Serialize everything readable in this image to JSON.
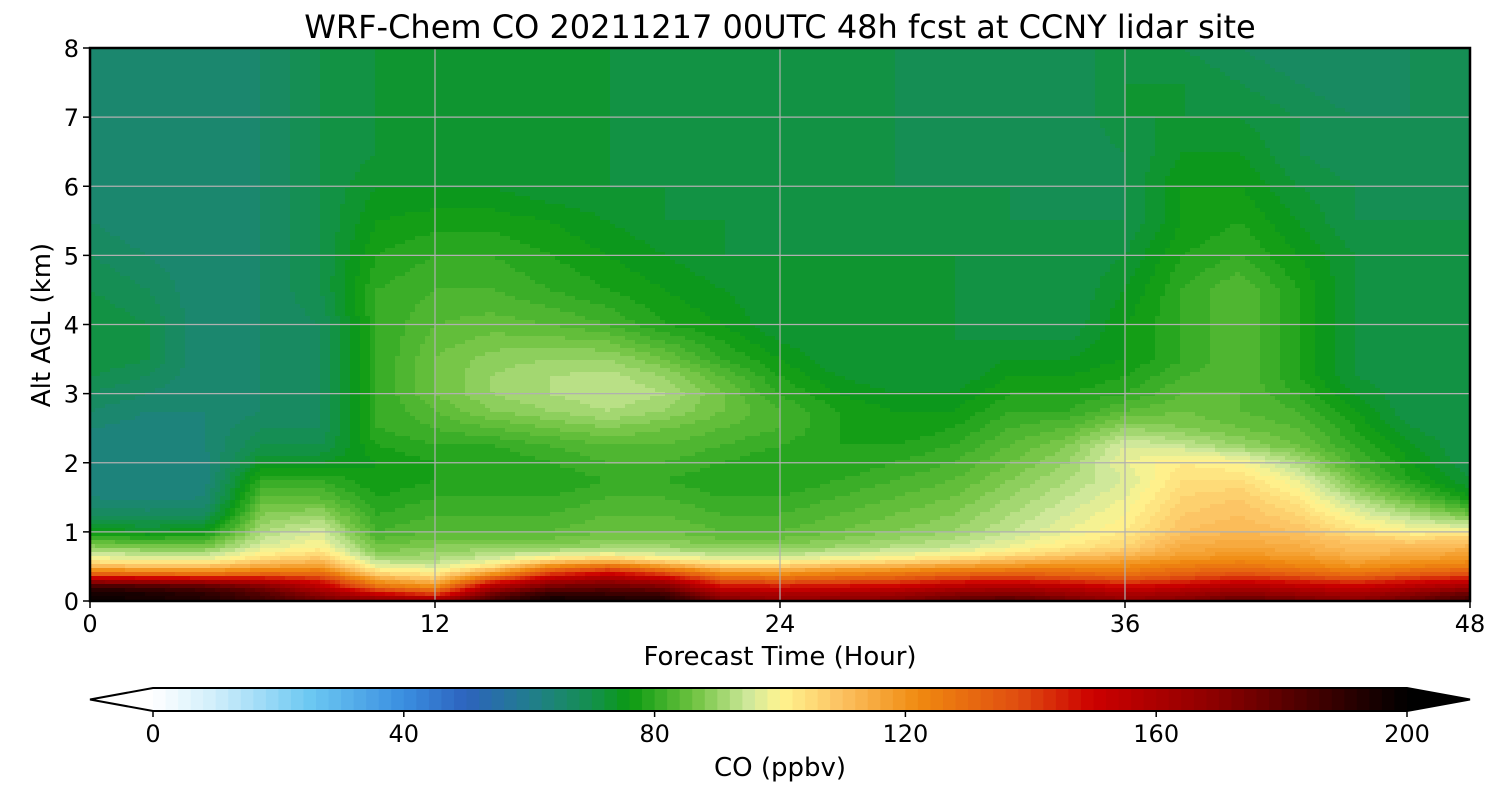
{
  "chart_data": {
    "type": "heatmap",
    "title": "WRF-Chem CO  20211217 00UTC 48h fcst at CCNY lidar site",
    "xlabel": "Forecast Time (Hour)",
    "ylabel": "Alt AGL (km)",
    "xlim": [
      0,
      48
    ],
    "ylim": [
      0,
      8
    ],
    "xticks": [
      "0",
      "12",
      "24",
      "36",
      "48"
    ],
    "yticks": [
      "0",
      "1",
      "2",
      "3",
      "4",
      "5",
      "6",
      "7",
      "8"
    ],
    "grid": true,
    "x_hours": [
      0,
      2,
      4,
      6,
      8,
      10,
      12,
      14,
      16,
      18,
      20,
      22,
      24,
      26,
      28,
      30,
      32,
      34,
      36,
      38,
      40,
      42,
      44,
      46,
      48
    ],
    "y_km": [
      0,
      0.1,
      0.2,
      0.3,
      0.4,
      0.5,
      0.6,
      0.7,
      0.8,
      0.9,
      1.0,
      1.25,
      1.5,
      1.75,
      2.0,
      2.25,
      2.5,
      2.75,
      3.0,
      3.25,
      3.5,
      3.75,
      4.0,
      4.5,
      5.0,
      5.5,
      6.0,
      6.5,
      7.0,
      7.5,
      8.0
    ],
    "co_ppbv_rows": [
      [
        198,
        196,
        193,
        186,
        176,
        172,
        168,
        186,
        198,
        196,
        194,
        174,
        168,
        170,
        172,
        180,
        184,
        176,
        168,
        172,
        180,
        176,
        170,
        178,
        186
      ],
      [
        196,
        194,
        190,
        182,
        168,
        152,
        140,
        176,
        190,
        188,
        186,
        164,
        160,
        162,
        164,
        170,
        172,
        166,
        160,
        164,
        170,
        166,
        162,
        170,
        178
      ],
      [
        188,
        186,
        182,
        174,
        156,
        130,
        122,
        160,
        176,
        178,
        174,
        150,
        148,
        150,
        152,
        158,
        160,
        156,
        150,
        154,
        160,
        156,
        152,
        158,
        164
      ],
      [
        162,
        160,
        158,
        154,
        146,
        118,
        110,
        140,
        160,
        166,
        158,
        136,
        134,
        136,
        138,
        144,
        146,
        142,
        138,
        142,
        148,
        144,
        140,
        146,
        150
      ],
      [
        130,
        128,
        126,
        130,
        130,
        106,
        102,
        118,
        140,
        150,
        138,
        122,
        120,
        124,
        126,
        130,
        132,
        130,
        128,
        132,
        136,
        132,
        128,
        132,
        136
      ],
      [
        112,
        110,
        110,
        116,
        118,
        98,
        96,
        104,
        122,
        130,
        118,
        108,
        108,
        112,
        114,
        118,
        120,
        122,
        122,
        126,
        128,
        124,
        120,
        124,
        126
      ],
      [
        100,
        98,
        98,
        106,
        110,
        92,
        92,
        96,
        104,
        108,
        102,
        98,
        98,
        100,
        102,
        106,
        110,
        114,
        116,
        120,
        122,
        120,
        116,
        118,
        120
      ],
      [
        94,
        92,
        92,
        100,
        104,
        88,
        90,
        92,
        94,
        96,
        94,
        92,
        92,
        94,
        96,
        98,
        102,
        106,
        110,
        116,
        118,
        116,
        112,
        114,
        116
      ],
      [
        88,
        86,
        86,
        96,
        100,
        86,
        88,
        88,
        88,
        90,
        90,
        88,
        88,
        90,
        92,
        94,
        98,
        102,
        106,
        114,
        116,
        114,
        110,
        110,
        112
      ],
      [
        82,
        80,
        82,
        94,
        98,
        84,
        86,
        86,
        86,
        88,
        88,
        86,
        86,
        88,
        90,
        92,
        96,
        100,
        104,
        112,
        114,
        112,
        108,
        106,
        108
      ],
      [
        76,
        74,
        76,
        92,
        96,
        82,
        84,
        84,
        84,
        86,
        86,
        84,
        84,
        86,
        88,
        90,
        94,
        98,
        102,
        110,
        112,
        110,
        104,
        100,
        100
      ],
      [
        68,
        67,
        68,
        88,
        90,
        80,
        82,
        82,
        82,
        84,
        84,
        82,
        82,
        84,
        86,
        88,
        92,
        96,
        100,
        108,
        110,
        106,
        98,
        92,
        86
      ],
      [
        64,
        63,
        64,
        84,
        84,
        78,
        80,
        80,
        80,
        82,
        82,
        80,
        80,
        82,
        84,
        86,
        90,
        94,
        98,
        106,
        108,
        102,
        92,
        84,
        76
      ],
      [
        62,
        62,
        63,
        80,
        80,
        76,
        78,
        78,
        78,
        80,
        80,
        78,
        78,
        80,
        82,
        84,
        88,
        92,
        96,
        104,
        104,
        98,
        86,
        78,
        72
      ],
      [
        62,
        62,
        63,
        74,
        74,
        76,
        78,
        78,
        80,
        82,
        82,
        80,
        78,
        78,
        80,
        82,
        86,
        90,
        98,
        102,
        100,
        92,
        82,
        76,
        70
      ],
      [
        63,
        63,
        64,
        70,
        70,
        78,
        80,
        80,
        82,
        84,
        84,
        82,
        80,
        78,
        78,
        80,
        84,
        88,
        96,
        94,
        90,
        86,
        80,
        74,
        70
      ],
      [
        64,
        63,
        64,
        68,
        68,
        80,
        82,
        84,
        86,
        88,
        86,
        84,
        82,
        78,
        76,
        78,
        82,
        84,
        90,
        88,
        86,
        84,
        78,
        72,
        70
      ],
      [
        66,
        64,
        64,
        66,
        68,
        80,
        84,
        88,
        90,
        92,
        90,
        86,
        82,
        78,
        76,
        76,
        80,
        80,
        84,
        86,
        84,
        82,
        76,
        70,
        70
      ],
      [
        68,
        66,
        64,
        66,
        68,
        80,
        86,
        90,
        92,
        94,
        92,
        86,
        80,
        76,
        74,
        74,
        78,
        78,
        80,
        84,
        84,
        80,
        74,
        70,
        70
      ],
      [
        70,
        68,
        64,
        66,
        68,
        80,
        86,
        90,
        92,
        93,
        90,
        84,
        78,
        74,
        72,
        72,
        76,
        76,
        78,
        82,
        84,
        78,
        72,
        70,
        70
      ],
      [
        72,
        70,
        64,
        66,
        68,
        80,
        86,
        89,
        90,
        90,
        86,
        80,
        76,
        72,
        72,
        72,
        74,
        74,
        76,
        80,
        84,
        78,
        72,
        70,
        70
      ],
      [
        72,
        70,
        64,
        66,
        68,
        80,
        85,
        87,
        87,
        86,
        82,
        78,
        74,
        72,
        72,
        72,
        72,
        72,
        76,
        80,
        84,
        78,
        72,
        70,
        70
      ],
      [
        72,
        70,
        64,
        66,
        68,
        80,
        84,
        85,
        84,
        82,
        78,
        76,
        72,
        72,
        72,
        72,
        70,
        70,
        76,
        80,
        84,
        78,
        72,
        70,
        70
      ],
      [
        70,
        68,
        64,
        66,
        70,
        80,
        82,
        82,
        80,
        78,
        76,
        74,
        72,
        72,
        72,
        72,
        70,
        70,
        74,
        80,
        84,
        78,
        72,
        70,
        70
      ],
      [
        68,
        66,
        64,
        66,
        70,
        78,
        80,
        80,
        78,
        76,
        74,
        72,
        72,
        72,
        72,
        72,
        70,
        70,
        72,
        78,
        80,
        76,
        72,
        70,
        70
      ],
      [
        66,
        64,
        64,
        66,
        70,
        76,
        77,
        77,
        76,
        74,
        72,
        72,
        70,
        70,
        70,
        70,
        70,
        70,
        70,
        76,
        78,
        74,
        70,
        70,
        70
      ],
      [
        66,
        64,
        64,
        66,
        70,
        74,
        74,
        74,
        72,
        72,
        72,
        70,
        70,
        70,
        70,
        70,
        70,
        68,
        70,
        76,
        76,
        72,
        70,
        68,
        70
      ],
      [
        66,
        64,
        64,
        66,
        70,
        72,
        72,
        72,
        72,
        72,
        70,
        70,
        70,
        70,
        70,
        68,
        68,
        68,
        70,
        74,
        74,
        70,
        68,
        68,
        70
      ],
      [
        66,
        64,
        64,
        66,
        70,
        72,
        72,
        72,
        72,
        72,
        70,
        70,
        70,
        70,
        70,
        68,
        68,
        68,
        72,
        72,
        72,
        70,
        68,
        68,
        70
      ],
      [
        66,
        64,
        64,
        66,
        70,
        72,
        72,
        72,
        72,
        72,
        70,
        70,
        70,
        70,
        70,
        68,
        68,
        68,
        72,
        72,
        70,
        68,
        66,
        68,
        70
      ],
      [
        66,
        64,
        64,
        66,
        70,
        72,
        72,
        72,
        72,
        72,
        70,
        70,
        70,
        70,
        70,
        68,
        68,
        68,
        72,
        70,
        68,
        66,
        66,
        68,
        70
      ]
    ],
    "colorbar": {
      "label": "CO  (ppbv)",
      "min": 0,
      "max": 200,
      "ticks": [
        "0",
        "40",
        "80",
        "120",
        "160",
        "200"
      ],
      "extend": "both",
      "color_stops": [
        {
          "value": 0,
          "color": "#ffffff"
        },
        {
          "value": 10,
          "color": "#cfeefb"
        },
        {
          "value": 25,
          "color": "#6cc8f2"
        },
        {
          "value": 40,
          "color": "#3a8ee0"
        },
        {
          "value": 50,
          "color": "#2d63bd"
        },
        {
          "value": 60,
          "color": "#217d8e"
        },
        {
          "value": 70,
          "color": "#14904e"
        },
        {
          "value": 76,
          "color": "#0a9a12"
        },
        {
          "value": 86,
          "color": "#6cc23e"
        },
        {
          "value": 95,
          "color": "#cfe89a"
        },
        {
          "value": 100,
          "color": "#fff590"
        },
        {
          "value": 110,
          "color": "#fcc060"
        },
        {
          "value": 122,
          "color": "#f08a10"
        },
        {
          "value": 138,
          "color": "#e04d10"
        },
        {
          "value": 150,
          "color": "#cc0000"
        },
        {
          "value": 170,
          "color": "#8a0000"
        },
        {
          "value": 190,
          "color": "#2e0000"
        },
        {
          "value": 200,
          "color": "#000000"
        }
      ]
    }
  }
}
